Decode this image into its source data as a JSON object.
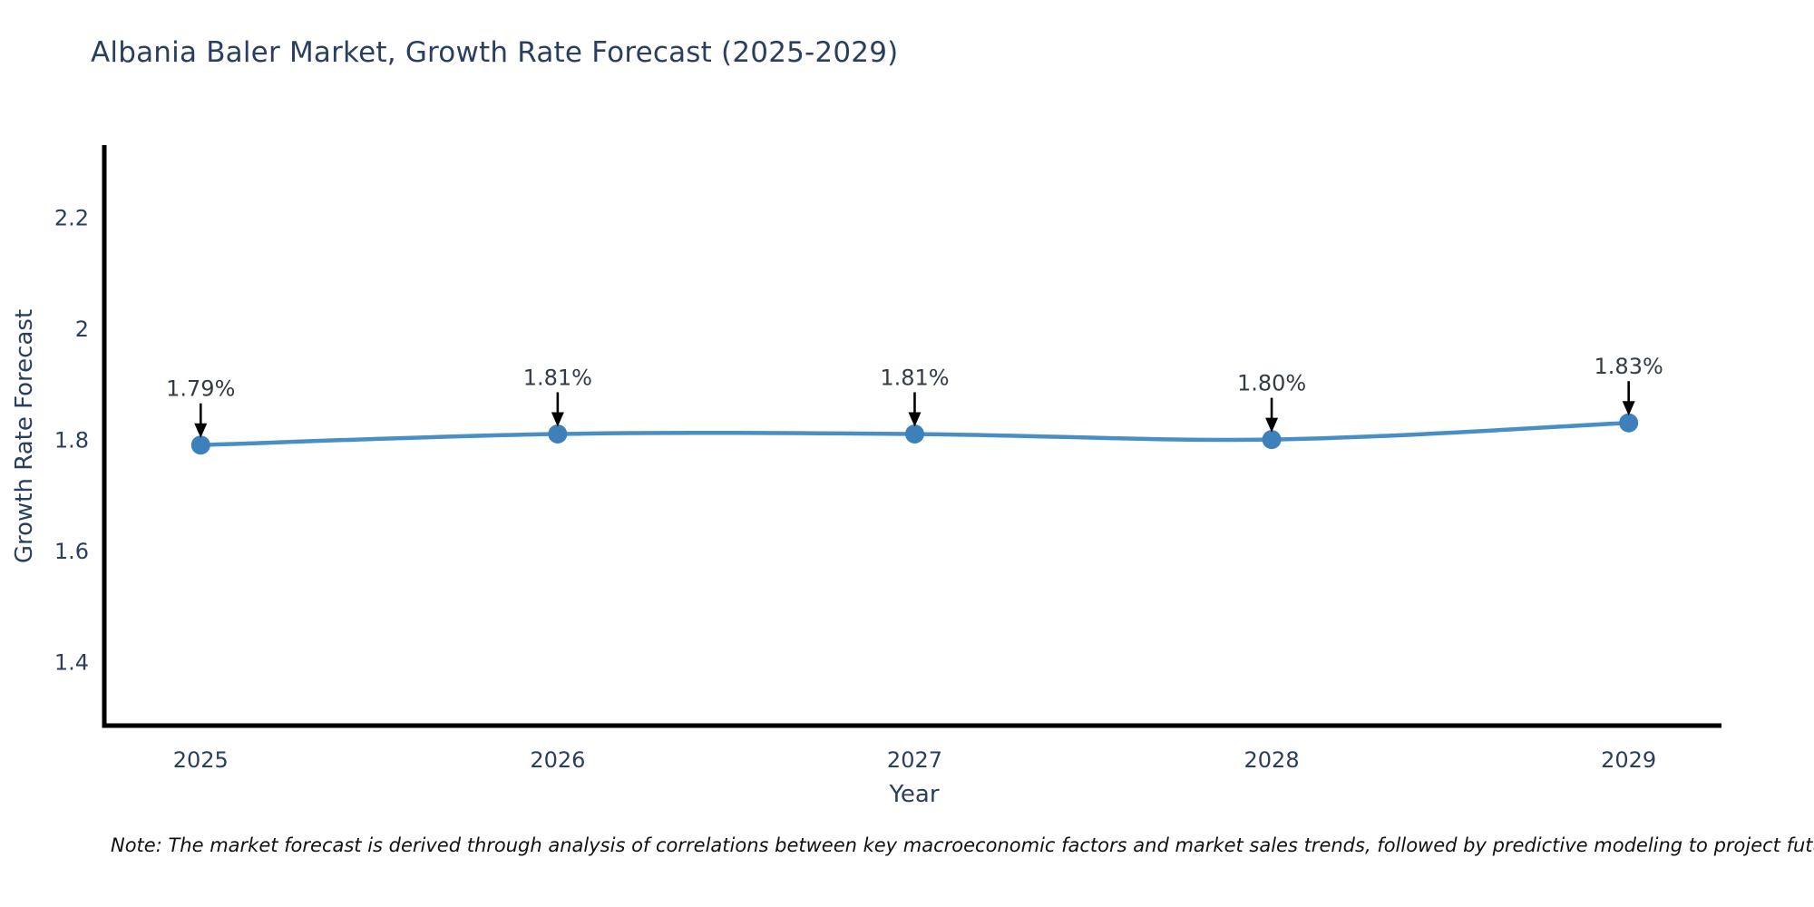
{
  "title": "Albania Baler Market, Growth Rate Forecast (2025-2029)",
  "note": "Note: The market forecast is derived through analysis of correlations between key macroeconomic factors and market sales trends, followed by predictive modeling to project future sales",
  "chart_data": {
    "type": "line",
    "title": "Albania Baler Market, Growth Rate Forecast (2025-2029)",
    "xlabel": "Year",
    "ylabel": "Growth Rate Forecast",
    "x": [
      2025,
      2026,
      2027,
      2028,
      2029
    ],
    "values": [
      1.79,
      1.81,
      1.81,
      1.8,
      1.83
    ],
    "point_labels": [
      "1.79%",
      "1.81%",
      "1.81%",
      "1.80%",
      "1.83%"
    ],
    "xtick_labels": [
      "2025",
      "2026",
      "2027",
      "2028",
      "2029"
    ],
    "ytick_values": [
      1.4,
      1.6,
      1.8,
      2,
      2.2
    ],
    "ytick_labels": [
      "1.4",
      "1.6",
      "1.8",
      "2",
      "2.2"
    ],
    "xlim": [
      2024.73,
      2029.26
    ],
    "ylim": [
      1.285,
      2.33
    ],
    "grid": false,
    "legend": "none",
    "line_shape": "spline",
    "colors": {
      "line": "#4a8fc4",
      "marker": "#3d80ba",
      "axis_line": "#000000",
      "axis_text": "#2a3f5f",
      "annotation_text": "#333b45",
      "annotation_arrow": "#000000",
      "note_text": "#111111"
    }
  }
}
